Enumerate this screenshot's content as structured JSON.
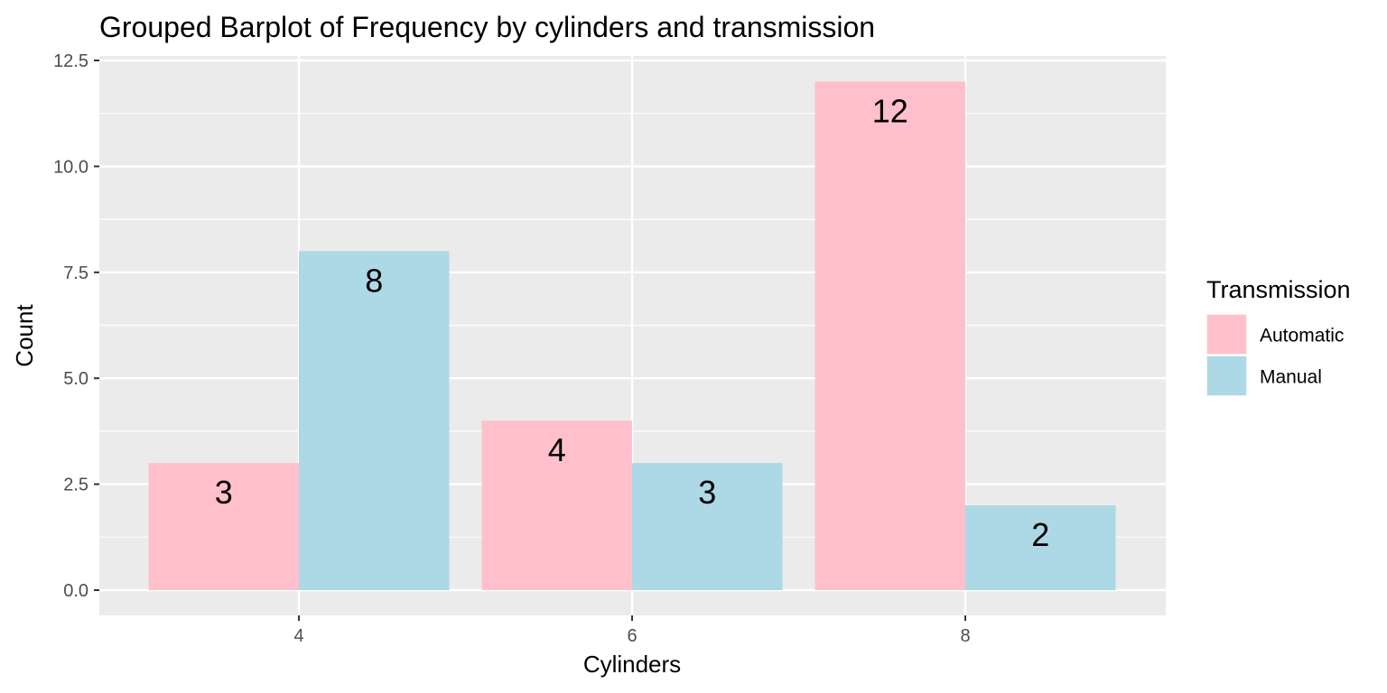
{
  "chart_data": {
    "type": "bar",
    "title": "Grouped Barplot of Frequency by cylinders and transmission",
    "xlabel": "Cylinders",
    "ylabel": "Count",
    "categories": [
      "4",
      "6",
      "8"
    ],
    "series": [
      {
        "name": "Automatic",
        "values": [
          3,
          4,
          12
        ],
        "color": "#FFC0CB"
      },
      {
        "name": "Manual",
        "values": [
          8,
          3,
          2
        ],
        "color": "#ADD8E6"
      }
    ],
    "ylim": [
      0,
      12.5
    ],
    "yticks": [
      0,
      2.5,
      5,
      7.5,
      10,
      12.5
    ],
    "ytick_labels": [
      "0.0",
      "2.5",
      "5.0",
      "7.5",
      "10.0",
      "12.5"
    ],
    "grid": true,
    "panel_background": "#EBEBEB",
    "legend": {
      "title": "Transmission",
      "position": "right"
    }
  }
}
